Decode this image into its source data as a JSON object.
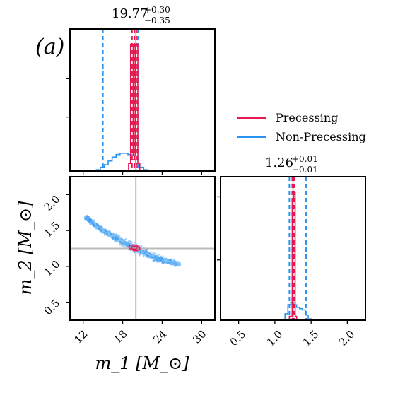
{
  "chart_data": {
    "type": "corner",
    "panel_label": "(a)",
    "colors": {
      "precessing": "#e8174f",
      "non_precessing": "#2a93f0",
      "truth": "#bbbbbb"
    },
    "legend": {
      "position": "top-right",
      "entries": [
        "Precessing",
        "Non-Precessing"
      ]
    },
    "m1_hist": {
      "title_value": "19.77",
      "title_plus": "+0.30",
      "title_minus": "−0.35",
      "xlim": [
        10,
        32
      ],
      "truth": 20.0,
      "precessing": {
        "quantiles": [
          19.42,
          19.77,
          20.07
        ],
        "bins": [
          [
            18.9,
            19.2,
            0.06
          ],
          [
            19.2,
            19.6,
            1.0
          ],
          [
            19.6,
            19.9,
            0.12
          ],
          [
            19.9,
            20.3,
            1.0
          ],
          [
            20.3,
            20.6,
            0.06
          ]
        ]
      },
      "non_precessing": {
        "quantiles": [
          15.0,
          20.3
        ],
        "bins": [
          [
            14.0,
            14.6,
            0.01
          ],
          [
            14.6,
            15.2,
            0.03
          ],
          [
            15.2,
            15.8,
            0.05
          ],
          [
            15.8,
            16.4,
            0.08
          ],
          [
            16.4,
            17.0,
            0.11
          ],
          [
            17.0,
            17.6,
            0.13
          ],
          [
            17.6,
            18.2,
            0.14
          ],
          [
            18.2,
            18.8,
            0.14
          ],
          [
            18.8,
            19.4,
            0.13
          ],
          [
            19.4,
            20.0,
            0.09
          ],
          [
            20.0,
            20.6,
            0.06
          ],
          [
            20.6,
            21.2,
            0.03
          ],
          [
            21.2,
            21.8,
            0.01
          ]
        ]
      },
      "ylim": [
        0,
        1.12
      ]
    },
    "m2_hist": {
      "title_value": "1.26",
      "title_plus": "+0.01",
      "title_minus": "−0.01",
      "xlim": [
        0.25,
        2.25
      ],
      "xticks": [
        "0.5",
        "1.0",
        "1.5",
        "2.0"
      ],
      "truth": 1.25,
      "precessing": {
        "quantiles": [
          1.24,
          1.26,
          1.27
        ],
        "bins": [
          [
            1.2,
            1.24,
            0.03
          ],
          [
            1.24,
            1.26,
            0.95
          ],
          [
            1.26,
            1.28,
            1.0
          ],
          [
            1.28,
            1.3,
            0.03
          ]
        ]
      },
      "non_precessing": {
        "quantiles": [
          1.2,
          1.43
        ],
        "bins": [
          [
            1.14,
            1.18,
            0.05
          ],
          [
            1.18,
            1.22,
            0.12
          ],
          [
            1.22,
            1.26,
            0.14
          ],
          [
            1.26,
            1.3,
            0.12
          ],
          [
            1.3,
            1.34,
            0.1
          ],
          [
            1.34,
            1.38,
            0.09
          ],
          [
            1.38,
            1.42,
            0.08
          ],
          [
            1.42,
            1.46,
            0.04
          ],
          [
            1.46,
            1.5,
            0.01
          ]
        ]
      },
      "ylim": [
        0,
        1.12
      ]
    },
    "joint": {
      "xlabel": "m_1 [M_⊙]",
      "ylabel": "m_2 [M_⊙]",
      "xlim": [
        10,
        32
      ],
      "ylim": [
        0.25,
        2.25
      ],
      "xticks": [
        "12",
        "18",
        "24",
        "30"
      ],
      "yticks": [
        "0.5",
        "1.0",
        "1.5",
        "2.0"
      ],
      "truth": [
        20.0,
        1.25
      ],
      "non_precessing_curve": [
        [
          12.5,
          1.68
        ],
        [
          13.5,
          1.6
        ],
        [
          15.0,
          1.5
        ],
        [
          16.5,
          1.42
        ],
        [
          18.0,
          1.34
        ],
        [
          19.5,
          1.27
        ],
        [
          21.0,
          1.2
        ],
        [
          22.5,
          1.14
        ],
        [
          24.0,
          1.09
        ],
        [
          26.5,
          1.03
        ]
      ],
      "precessing_center": [
        19.77,
        1.26
      ]
    }
  }
}
